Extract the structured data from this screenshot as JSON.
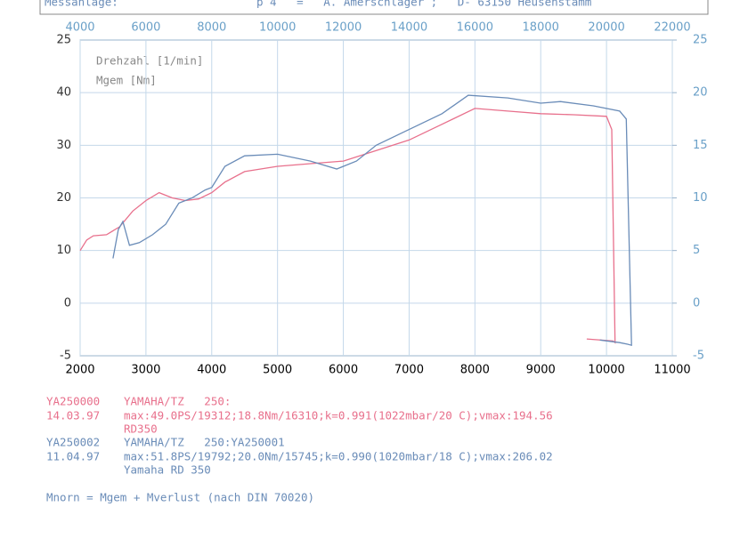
{
  "header": {
    "label": "Messanlage:",
    "text": "p 4   =   A. Amerschläger ;   D- 63150 Heusenstamm"
  },
  "chart_data": {
    "type": "line",
    "legend": [
      "Drehzahl [1/min]",
      "Mgem [Nm]"
    ],
    "xlim": [
      2000,
      11000
    ],
    "xticks": [
      2000,
      3000,
      4000,
      5000,
      6000,
      7000,
      8000,
      9000,
      10000,
      11000
    ],
    "x2lim": [
      4000,
      22000
    ],
    "x2ticks": [
      4000,
      6000,
      8000,
      10000,
      12000,
      14000,
      16000,
      18000,
      20000,
      22000
    ],
    "ylim": [
      -10,
      50
    ],
    "yticks": [
      0,
      10,
      20,
      30,
      40
    ],
    "left_axis_edge_labels": [
      "25",
      "-5"
    ],
    "y2lim": [
      -5,
      25
    ],
    "y2ticks": [
      -5,
      0,
      5,
      10,
      15,
      20,
      25
    ],
    "grid": true,
    "series": [
      {
        "name": "YA250000",
        "color": "#e8708c",
        "x": [
          2000,
          2100,
          2200,
          2400,
          2600,
          2800,
          3000,
          3200,
          3400,
          3600,
          3800,
          4000,
          4200,
          4500,
          5000,
          5500,
          6000,
          6500,
          7000,
          7500,
          8000,
          8500,
          9000,
          9500,
          10000,
          10080,
          10130,
          10100,
          9700
        ],
        "values": [
          10,
          12,
          12.8,
          13,
          14.5,
          17.5,
          19.5,
          21,
          20,
          19.5,
          19.8,
          21,
          23,
          25,
          26,
          26.5,
          27,
          29,
          31,
          34,
          37,
          36.5,
          36,
          35.8,
          35.5,
          33,
          -7.5,
          -7.2,
          -6.8
        ]
      },
      {
        "name": "YA250002",
        "color": "#6a8cb8",
        "x": [
          2500,
          2580,
          2650,
          2750,
          2900,
          3100,
          3300,
          3500,
          3700,
          3900,
          4000,
          4200,
          4500,
          5000,
          5500,
          5900,
          6200,
          6500,
          7000,
          7500,
          7900,
          8500,
          9000,
          9300,
          9800,
          10200,
          10300,
          10380,
          10320,
          10200,
          9900
        ],
        "values": [
          8.5,
          14,
          15.5,
          11,
          11.5,
          13,
          15,
          19,
          20,
          21.5,
          22,
          26,
          28,
          28.3,
          27,
          25.5,
          27,
          30,
          33,
          36,
          39.5,
          39,
          38,
          38.3,
          37.5,
          36.5,
          35,
          -8,
          -7.8,
          -7.5,
          -7
        ]
      }
    ]
  },
  "footer": {
    "runs": [
      {
        "color": "#e8708c",
        "id": "YA250000",
        "model": "YAMAHA/TZ   250:",
        "date": "14.03.97",
        "stats": "max:49.0PS/19312;18.8Nm/16310;k=0.991(1022mbar/20 C);vmax:194.56",
        "note": "RD350"
      },
      {
        "color": "#6a8cb8",
        "id": "YA250002",
        "model": "YAMAHA/TZ   250:YA250001",
        "date": "11.04.97",
        "stats": "max:51.8PS/19792;20.0Nm/15745;k=0.990(1020mbar/18 C);vmax:206.02",
        "note": "Yamaha RD 350"
      }
    ],
    "formula": "Mnorn = Mgem + Mverlust (nach DIN 70020)"
  }
}
